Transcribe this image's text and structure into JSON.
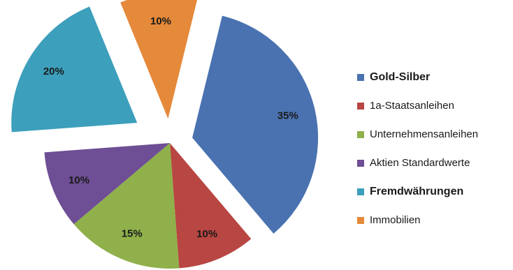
{
  "chart_data": {
    "type": "pie",
    "exploded": true,
    "legend_position": "right",
    "slices": [
      {
        "name": "Gold-Silber",
        "value": 35,
        "label": "35%",
        "color": "#4a72b0",
        "emphasis": true
      },
      {
        "name": "1a-Staatsanleihen",
        "value": 10,
        "label": "10%",
        "color": "#b84642",
        "emphasis": false
      },
      {
        "name": "Unternehmensanleihen",
        "value": 15,
        "label": "15%",
        "color": "#8fb04a",
        "emphasis": false
      },
      {
        "name": "Aktien Standardwerte",
        "value": 10,
        "label": "10%",
        "color": "#6e4e94",
        "emphasis": false
      },
      {
        "name": "Fremdwährungen",
        "value": 20,
        "label": "20%",
        "color": "#3c9fbb",
        "emphasis": true
      },
      {
        "name": "Immobilien",
        "value": 10,
        "label": "10%",
        "color": "#e5893a",
        "emphasis": false
      }
    ]
  }
}
